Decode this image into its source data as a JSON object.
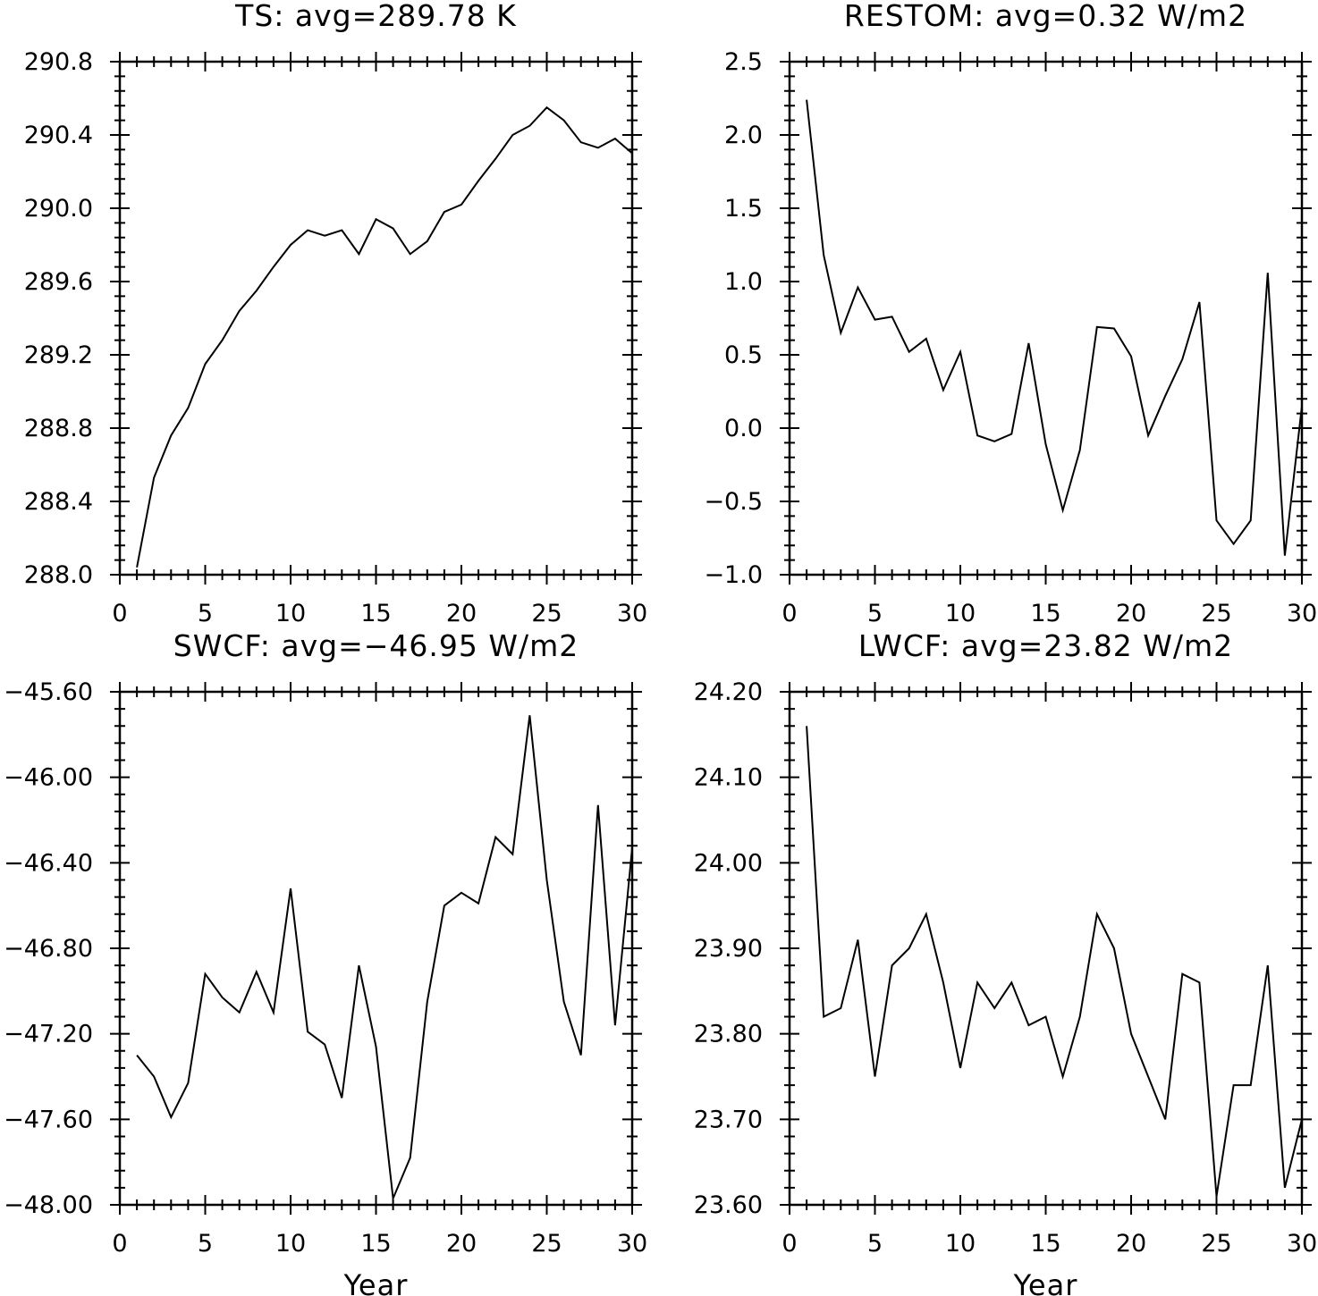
{
  "figure": {
    "background": "#ffffff",
    "line_color": "#000000"
  },
  "chart_data": [
    {
      "type": "line",
      "title": "TS: avg=289.78 K",
      "xlabel": "",
      "ylabel": "",
      "xlim": [
        0,
        30
      ],
      "ylim": [
        288.0,
        290.8
      ],
      "xticks": [
        0,
        5,
        10,
        15,
        20,
        25,
        30
      ],
      "xtick_labels": [
        "0",
        "5",
        "10",
        "15",
        "20",
        "25",
        "30"
      ],
      "yticks": [
        288.0,
        288.4,
        288.8,
        289.2,
        289.6,
        290.0,
        290.4,
        290.8
      ],
      "ytick_labels": [
        "288.0",
        "288.4",
        "288.8",
        "289.2",
        "289.6",
        "290.0",
        "290.4",
        "290.8"
      ],
      "grid": false,
      "x": [
        1,
        2,
        3,
        4,
        5,
        6,
        7,
        8,
        9,
        10,
        11,
        12,
        13,
        14,
        15,
        16,
        17,
        18,
        19,
        20,
        21,
        22,
        23,
        24,
        25,
        26,
        27,
        28,
        29,
        30
      ],
      "y": [
        288.04,
        288.53,
        288.76,
        288.91,
        289.15,
        289.28,
        289.44,
        289.55,
        289.68,
        289.8,
        289.88,
        289.85,
        289.88,
        289.75,
        289.94,
        289.89,
        289.75,
        289.82,
        289.98,
        290.02,
        290.15,
        290.27,
        290.4,
        290.45,
        290.55,
        290.48,
        290.36,
        290.33,
        290.38,
        290.3
      ]
    },
    {
      "type": "line",
      "title": "RESTOM: avg=0.32 W/m2",
      "xlabel": "",
      "ylabel": "",
      "xlim": [
        0,
        30
      ],
      "ylim": [
        -1.0,
        2.5
      ],
      "xticks": [
        0,
        5,
        10,
        15,
        20,
        25,
        30
      ],
      "xtick_labels": [
        "0",
        "5",
        "10",
        "15",
        "20",
        "25",
        "30"
      ],
      "yticks": [
        -1.0,
        -0.5,
        0.0,
        0.5,
        1.0,
        1.5,
        2.0,
        2.5
      ],
      "ytick_labels": [
        "−1.0",
        "−0.5",
        "0.0",
        "0.5",
        "1.0",
        "1.5",
        "2.0",
        "2.5"
      ],
      "grid": false,
      "x": [
        1,
        2,
        3,
        4,
        5,
        6,
        7,
        8,
        9,
        10,
        11,
        12,
        13,
        14,
        15,
        16,
        17,
        18,
        19,
        20,
        21,
        22,
        23,
        24,
        25,
        26,
        27,
        28,
        29,
        30
      ],
      "y": [
        2.24,
        1.18,
        0.65,
        0.96,
        0.74,
        0.76,
        0.52,
        0.61,
        0.26,
        0.52,
        -0.05,
        -0.09,
        -0.04,
        0.58,
        -0.11,
        -0.56,
        -0.15,
        0.69,
        0.68,
        0.49,
        -0.05,
        0.22,
        0.47,
        0.86,
        -0.63,
        -0.79,
        -0.63,
        1.06,
        -0.87,
        0.15
      ]
    },
    {
      "type": "line",
      "title": "SWCF: avg=−46.95 W/m2",
      "xlabel": "Year",
      "ylabel": "",
      "xlim": [
        0,
        30
      ],
      "ylim": [
        -48.0,
        -45.6
      ],
      "xticks": [
        0,
        5,
        10,
        15,
        20,
        25,
        30
      ],
      "xtick_labels": [
        "0",
        "5",
        "10",
        "15",
        "20",
        "25",
        "30"
      ],
      "yticks": [
        -48.0,
        -47.6,
        -47.2,
        -46.8,
        -46.4,
        -46.0,
        -45.6
      ],
      "ytick_labels": [
        "−48.00",
        "−47.60",
        "−47.20",
        "−46.80",
        "−46.40",
        "−46.00",
        "−45.60"
      ],
      "grid": false,
      "x": [
        1,
        2,
        3,
        4,
        5,
        6,
        7,
        8,
        9,
        10,
        11,
        12,
        13,
        14,
        15,
        16,
        17,
        18,
        19,
        20,
        21,
        22,
        23,
        24,
        25,
        26,
        27,
        28,
        29,
        30
      ],
      "y": [
        -47.3,
        -47.4,
        -47.59,
        -47.43,
        -46.92,
        -47.03,
        -47.1,
        -46.91,
        -47.1,
        -46.52,
        -47.19,
        -47.25,
        -47.5,
        -46.88,
        -47.26,
        -47.97,
        -47.78,
        -47.05,
        -46.6,
        -46.54,
        -46.59,
        -46.28,
        -46.36,
        -45.71,
        -46.48,
        -47.05,
        -47.3,
        -46.13,
        -47.16,
        -46.33
      ]
    },
    {
      "type": "line",
      "title": "LWCF: avg=23.82 W/m2",
      "xlabel": "Year",
      "ylabel": "",
      "xlim": [
        0,
        30
      ],
      "ylim": [
        23.6,
        24.2
      ],
      "xticks": [
        0,
        5,
        10,
        15,
        20,
        25,
        30
      ],
      "xtick_labels": [
        "0",
        "5",
        "10",
        "15",
        "20",
        "25",
        "30"
      ],
      "yticks": [
        23.6,
        23.7,
        23.8,
        23.9,
        24.0,
        24.1,
        24.2
      ],
      "ytick_labels": [
        "23.60",
        "23.70",
        "23.80",
        "23.90",
        "24.00",
        "24.10",
        "24.20"
      ],
      "grid": false,
      "x": [
        1,
        2,
        3,
        4,
        5,
        6,
        7,
        8,
        9,
        10,
        11,
        12,
        13,
        14,
        15,
        16,
        17,
        18,
        19,
        20,
        21,
        22,
        23,
        24,
        25,
        26,
        27,
        28,
        29,
        30
      ],
      "y": [
        24.16,
        23.82,
        23.83,
        23.91,
        23.75,
        23.88,
        23.9,
        23.94,
        23.86,
        23.76,
        23.86,
        23.83,
        23.86,
        23.81,
        23.82,
        23.75,
        23.82,
        23.94,
        23.9,
        23.8,
        23.75,
        23.7,
        23.87,
        23.86,
        23.61,
        23.74,
        23.74,
        23.88,
        23.62,
        23.7
      ]
    }
  ]
}
